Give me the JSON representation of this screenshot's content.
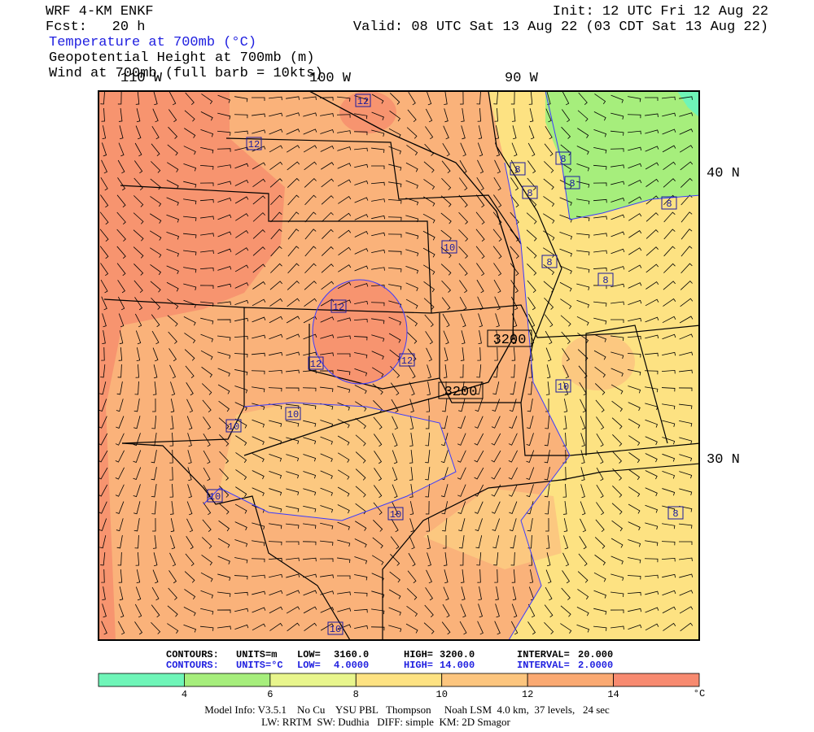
{
  "header": {
    "model": "WRF 4-KM ENKF",
    "forecast": "Fcst:   20 h",
    "init": "Init: 12 UTC Fri 12 Aug 22",
    "valid": "Valid: 08 UTC Sat 13 Aug 22 (03 CDT Sat 13 Aug 22)",
    "fields": [
      "Temperature at 700mb (°C)",
      "Geopotential Height at 700mb (m)",
      "Wind at 700mb (full barb = 10kts)"
    ]
  },
  "map": {
    "longitudes": [
      "110 W",
      "100 W",
      "90 W"
    ],
    "latitudes": [
      "40 N",
      "30 N"
    ],
    "temperature_labels": [
      12,
      12,
      12,
      12,
      12,
      10,
      10,
      10,
      10,
      10,
      10,
      10,
      8,
      8,
      8,
      8,
      8,
      8,
      8,
      8
    ],
    "height_labels": [
      3200,
      3200
    ]
  },
  "contours": [
    [
      "CONTOURS:",
      "UNITS=m",
      "LOW=",
      "3160.0",
      "HIGH=",
      "3200.0",
      "INTERVAL=",
      "20.000"
    ],
    [
      "CONTOURS:",
      "UNITS=°C",
      "LOW=",
      "4.0000",
      "HIGH=",
      "14.000",
      "INTERVAL=",
      "2.0000"
    ]
  ],
  "colorbar": {
    "colors": [
      "#6ff5b8",
      "#a6ee7c",
      "#e8f58c",
      "#fde282",
      "#fcc57e",
      "#faa972",
      "#f78a70"
    ],
    "ticks": [
      4,
      6,
      8,
      10,
      12,
      14
    ],
    "unit": "°C"
  },
  "footer": [
    "Model Info: V3.5.1    No Cu    YSU PBL   Thompson     Noah LSM  4.0 km,  37 levels,   24 sec",
    "LW: RRTM  SW: Dudhia   DIFF: simple  KM: 2D Smagor"
  ]
}
